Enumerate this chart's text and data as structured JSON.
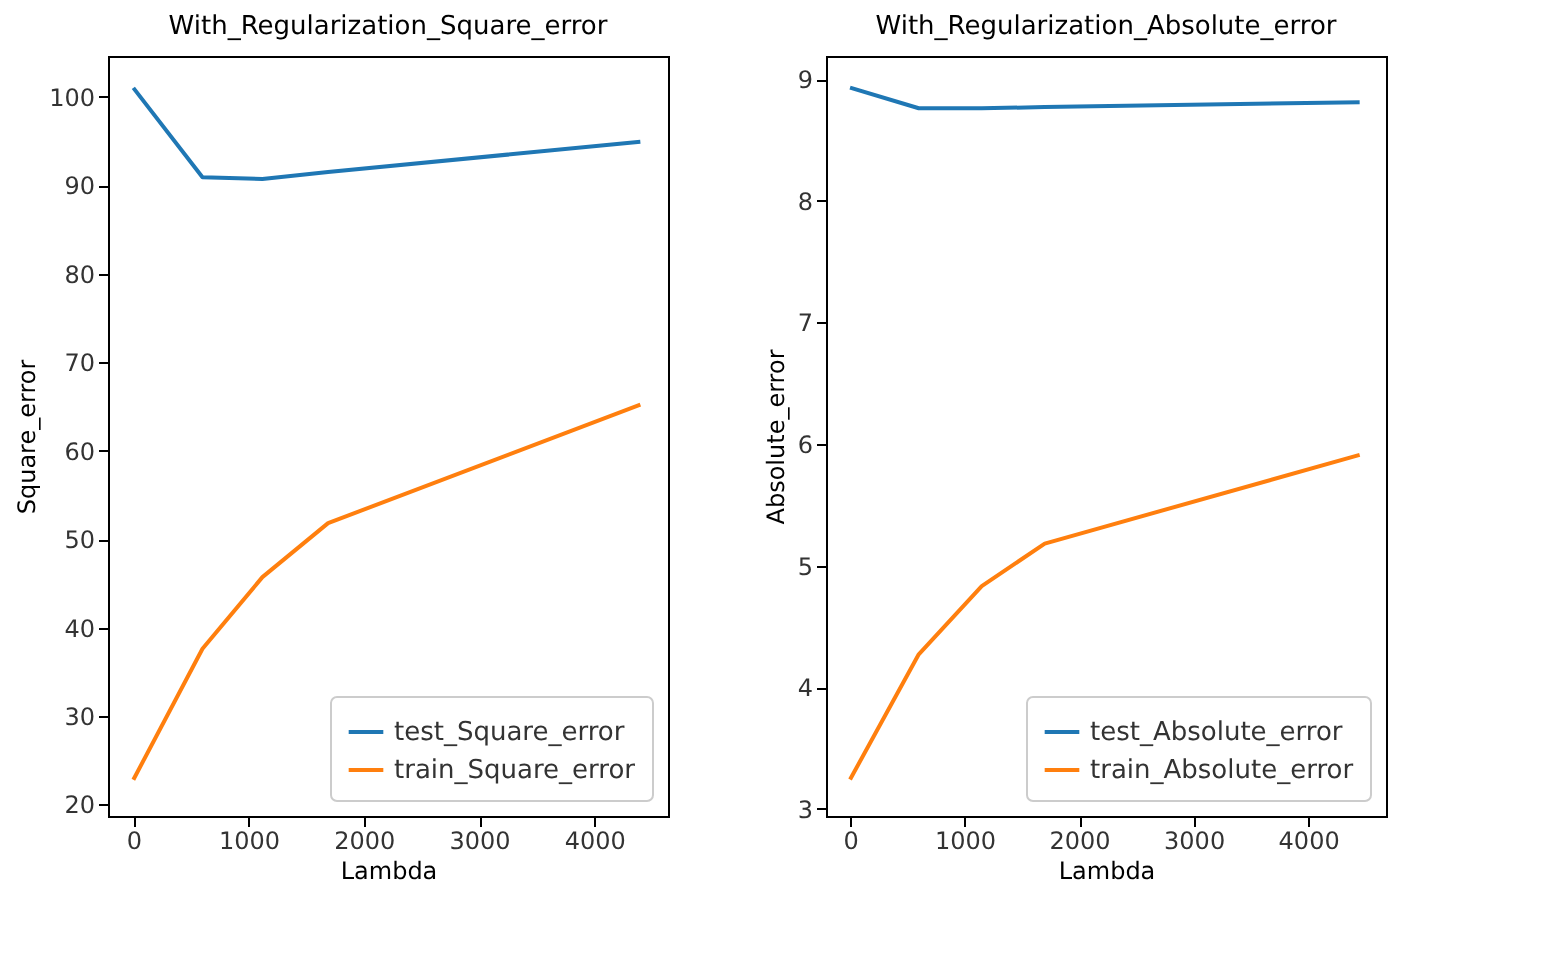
{
  "chart_data": [
    {
      "type": "line",
      "title": "With_Regularization_Square_error",
      "xlabel": "Lambda",
      "ylabel": "Square_error",
      "x": [
        0,
        600,
        1120,
        1690,
        4400
      ],
      "xlim": [
        -220,
        4640
      ],
      "xticks": [
        0,
        1000,
        2000,
        3000,
        4000
      ],
      "ylim": [
        18.7,
        104.6
      ],
      "yticks": [
        20,
        30,
        40,
        50,
        60,
        70,
        80,
        90,
        100
      ],
      "grid": false,
      "legend": "bottom right",
      "series": [
        {
          "name": "test_Square_error",
          "color": "#1f77b4",
          "values": [
            101,
            90.9,
            90.7,
            91.5,
            94.9
          ]
        },
        {
          "name": "train_Square_error",
          "color": "#ff7f0e",
          "values": [
            22.8,
            37.6,
            45.7,
            51.8,
            65.2
          ]
        }
      ]
    },
    {
      "type": "line",
      "title": "With_Regularization_Absolute_error",
      "xlabel": "Lambda",
      "ylabel": "Absolute_error",
      "x": [
        0,
        600,
        1150,
        1700,
        4450
      ],
      "xlim": [
        -210,
        4680
      ],
      "xticks": [
        0,
        1000,
        2000,
        3000,
        4000
      ],
      "ylim": [
        2.94,
        9.19
      ],
      "yticks": [
        3,
        4,
        5,
        6,
        7,
        8,
        9
      ],
      "grid": false,
      "legend": "bottom right",
      "series": [
        {
          "name": "test_Absolute_error",
          "color": "#1f77b4",
          "values": [
            8.93,
            8.76,
            8.76,
            8.77,
            8.81
          ]
        },
        {
          "name": "train_Absolute_error",
          "color": "#ff7f0e",
          "values": [
            3.24,
            4.27,
            4.83,
            5.18,
            5.91
          ]
        }
      ]
    }
  ]
}
